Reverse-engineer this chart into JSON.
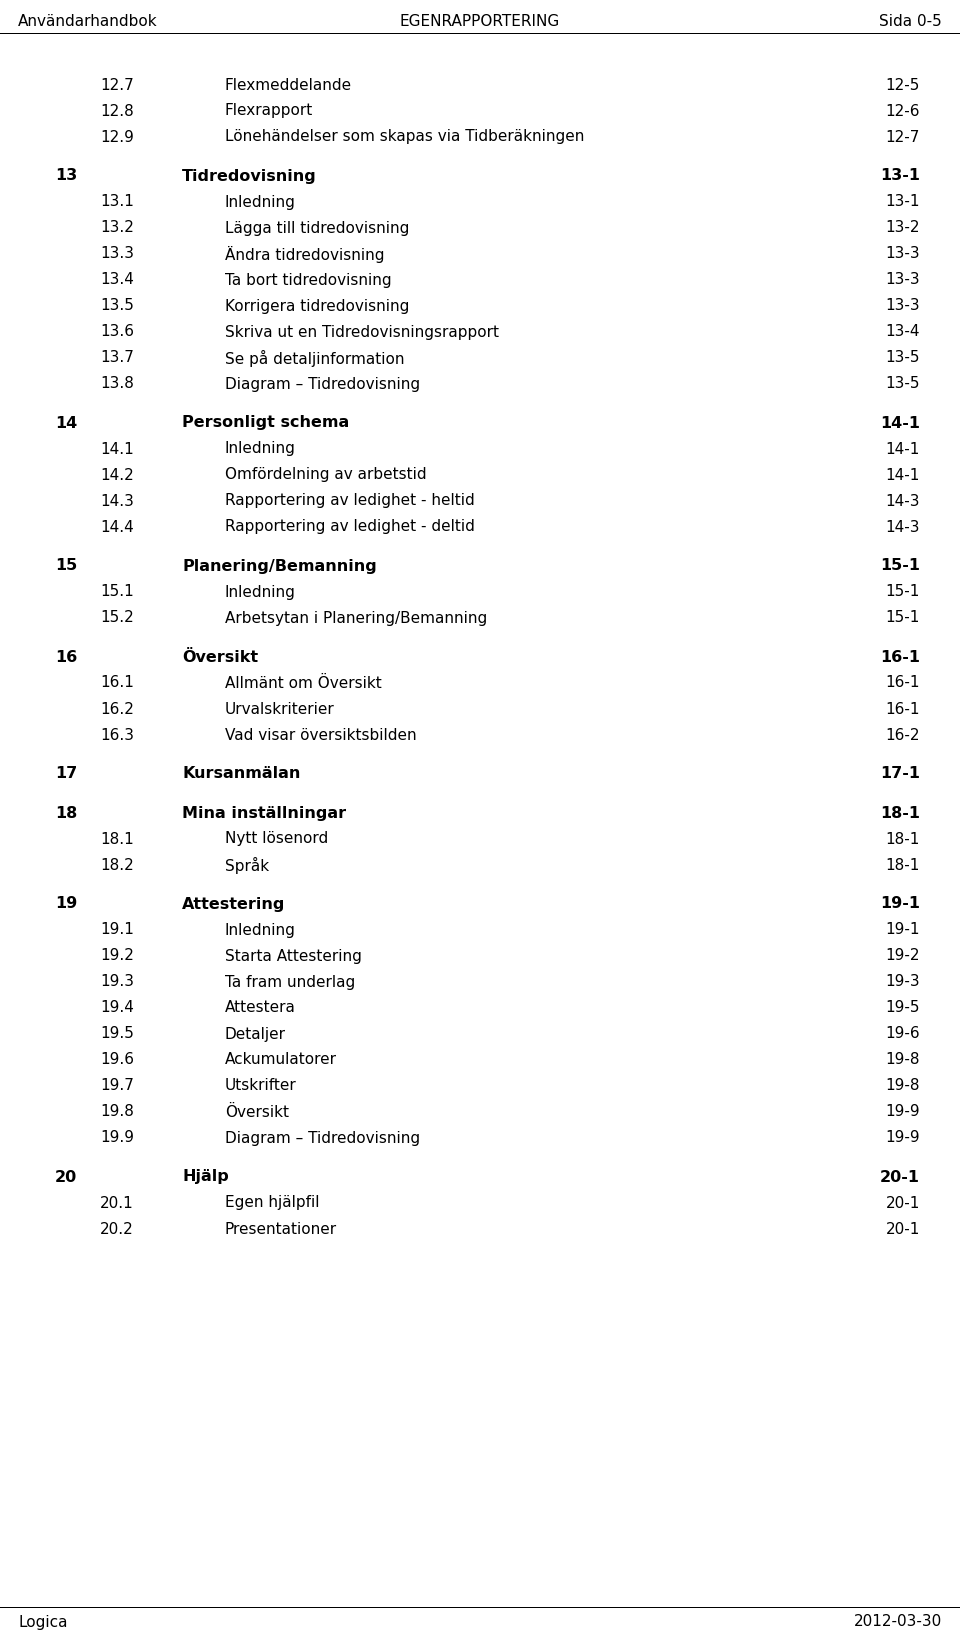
{
  "header_left": "Användarhandbok",
  "header_center": "EGENRAPPORTERING",
  "header_right": "Sida 0-5",
  "footer_left": "Logica",
  "footer_right": "2012-03-30",
  "bg_color": "#ffffff",
  "text_color": "#000000",
  "fig_width": 9.6,
  "fig_height": 16.43,
  "dpi": 100,
  "entries": [
    {
      "level": 2,
      "num": "12.7",
      "text": "Flexmeddelande",
      "page": "12-5"
    },
    {
      "level": 2,
      "num": "12.8",
      "text": "Flexrapport",
      "page": "12-6"
    },
    {
      "level": 2,
      "num": "12.9",
      "text": "Lönehändelser som skapas via Tidberäkningen",
      "page": "12-7"
    },
    {
      "level": 0,
      "num": "",
      "text": "",
      "page": ""
    },
    {
      "level": 1,
      "num": "13",
      "text": "Tidredovisning",
      "page": "13-1"
    },
    {
      "level": 2,
      "num": "13.1",
      "text": "Inledning",
      "page": "13-1"
    },
    {
      "level": 2,
      "num": "13.2",
      "text": "Lägga till tidredovisning",
      "page": "13-2"
    },
    {
      "level": 2,
      "num": "13.3",
      "text": "Ändra tidredovisning",
      "page": "13-3"
    },
    {
      "level": 2,
      "num": "13.4",
      "text": "Ta bort tidredovisning",
      "page": "13-3"
    },
    {
      "level": 2,
      "num": "13.5",
      "text": "Korrigera tidredovisning",
      "page": "13-3"
    },
    {
      "level": 2,
      "num": "13.6",
      "text": "Skriva ut en Tidredovisningsrapport",
      "page": "13-4"
    },
    {
      "level": 2,
      "num": "13.7",
      "text": "Se på detaljinformation",
      "page": "13-5"
    },
    {
      "level": 2,
      "num": "13.8",
      "text": "Diagram – Tidredovisning",
      "page": "13-5"
    },
    {
      "level": 0,
      "num": "",
      "text": "",
      "page": ""
    },
    {
      "level": 1,
      "num": "14",
      "text": "Personligt schema",
      "page": "14-1"
    },
    {
      "level": 2,
      "num": "14.1",
      "text": "Inledning",
      "page": "14-1"
    },
    {
      "level": 2,
      "num": "14.2",
      "text": "Omfördelning av arbetstid",
      "page": "14-1"
    },
    {
      "level": 2,
      "num": "14.3",
      "text": "Rapportering av ledighet - heltid",
      "page": "14-3"
    },
    {
      "level": 2,
      "num": "14.4",
      "text": "Rapportering av ledighet - deltid",
      "page": "14-3"
    },
    {
      "level": 0,
      "num": "",
      "text": "",
      "page": ""
    },
    {
      "level": 1,
      "num": "15",
      "text": "Planering/Bemanning",
      "page": "15-1"
    },
    {
      "level": 2,
      "num": "15.1",
      "text": "Inledning",
      "page": "15-1"
    },
    {
      "level": 2,
      "num": "15.2",
      "text": "Arbetsytan i Planering/Bemanning",
      "page": "15-1"
    },
    {
      "level": 0,
      "num": "",
      "text": "",
      "page": ""
    },
    {
      "level": 1,
      "num": "16",
      "text": "Översikt",
      "page": "16-1"
    },
    {
      "level": 2,
      "num": "16.1",
      "text": "Allmänt om Översikt",
      "page": "16-1"
    },
    {
      "level": 2,
      "num": "16.2",
      "text": "Urvalskriterier",
      "page": "16-1"
    },
    {
      "level": 2,
      "num": "16.3",
      "text": "Vad visar översiktsbilden",
      "page": "16-2"
    },
    {
      "level": 0,
      "num": "",
      "text": "",
      "page": ""
    },
    {
      "level": 1,
      "num": "17",
      "text": "Kursanmälan",
      "page": "17-1"
    },
    {
      "level": 0,
      "num": "",
      "text": "",
      "page": ""
    },
    {
      "level": 1,
      "num": "18",
      "text": "Mina inställningar",
      "page": "18-1"
    },
    {
      "level": 2,
      "num": "18.1",
      "text": "Nytt lösenord",
      "page": "18-1"
    },
    {
      "level": 2,
      "num": "18.2",
      "text": "Språk",
      "page": "18-1"
    },
    {
      "level": 0,
      "num": "",
      "text": "",
      "page": ""
    },
    {
      "level": 1,
      "num": "19",
      "text": "Attestering",
      "page": "19-1"
    },
    {
      "level": 2,
      "num": "19.1",
      "text": "Inledning",
      "page": "19-1"
    },
    {
      "level": 2,
      "num": "19.2",
      "text": "Starta Attestering",
      "page": "19-2"
    },
    {
      "level": 2,
      "num": "19.3",
      "text": "Ta fram underlag",
      "page": "19-3"
    },
    {
      "level": 2,
      "num": "19.4",
      "text": "Attestera",
      "page": "19-5"
    },
    {
      "level": 2,
      "num": "19.5",
      "text": "Detaljer",
      "page": "19-6"
    },
    {
      "level": 2,
      "num": "19.6",
      "text": "Ackumulatorer",
      "page": "19-8"
    },
    {
      "level": 2,
      "num": "19.7",
      "text": "Utskrifter",
      "page": "19-8"
    },
    {
      "level": 2,
      "num": "19.8",
      "text": "Översikt",
      "page": "19-9"
    },
    {
      "level": 2,
      "num": "19.9",
      "text": "Diagram – Tidredovisning",
      "page": "19-9"
    },
    {
      "level": 0,
      "num": "",
      "text": "",
      "page": ""
    },
    {
      "level": 1,
      "num": "20",
      "text": "Hjälp",
      "page": "20-1"
    },
    {
      "level": 2,
      "num": "20.1",
      "text": "Egen hjälpfil",
      "page": "20-1"
    },
    {
      "level": 2,
      "num": "20.2",
      "text": "Presentationer",
      "page": "20-1"
    }
  ]
}
